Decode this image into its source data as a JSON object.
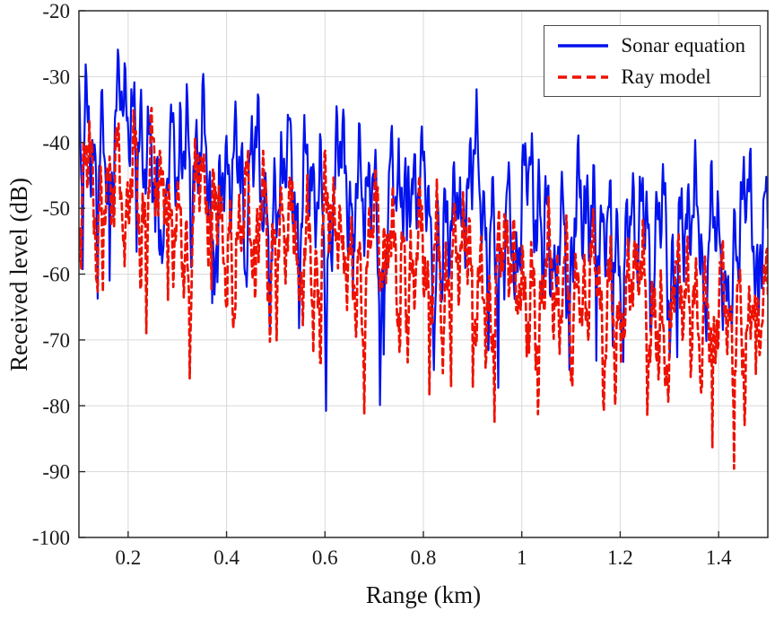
{
  "chart_data": {
    "type": "line",
    "title": "",
    "xlabel": "Range (km)",
    "ylabel": "Received level (dB)",
    "xlim": [
      0.1,
      1.5
    ],
    "ylim": [
      -100,
      -20
    ],
    "xticks": [
      0.2,
      0.4,
      0.6,
      0.8,
      1,
      1.2,
      1.4
    ],
    "yticks": [
      -100,
      -90,
      -80,
      -70,
      -60,
      -50,
      -40,
      -30,
      -20
    ],
    "grid": true,
    "legend_position": "top-right",
    "colors": {
      "grid": "#d9d9d9",
      "axis_box": "#2b2b2b",
      "tick_text": "#1a1a1a",
      "background": "#ffffff"
    },
    "series": [
      {
        "name": "Sonar equation",
        "color": "#0012ee",
        "style": "solid",
        "line_width": 2.2,
        "seed": 7,
        "trend_x": [
          0.1,
          0.2,
          0.3,
          0.4,
          0.5,
          0.6,
          0.8,
          1.0,
          1.2,
          1.5
        ],
        "trend_db": [
          -31,
          -35,
          -38.5,
          -40.5,
          -41.5,
          -42.5,
          -44.5,
          -46.5,
          -48.5,
          -50
        ],
        "osc": [
          {
            "f": 63,
            "a": 5.0
          },
          {
            "f": 151,
            "a": 3.2
          },
          {
            "f": 29,
            "a": 3.8
          },
          {
            "f": 7.3,
            "a": 2.0
          }
        ],
        "fades": [
          {
            "f": 9.1,
            "floor": 0.004,
            "g": 0.55
          },
          {
            "f": 4.3,
            "floor": 0.004,
            "g": 0.5
          }
        ],
        "jitter": 1.6
      },
      {
        "name": "Ray model",
        "color": "#ee1100",
        "style": "dashed",
        "line_width": 2.7,
        "seed": 23,
        "trend_x": [
          0.1,
          0.2,
          0.3,
          0.4,
          0.5,
          0.6,
          0.8,
          1.0,
          1.2,
          1.5
        ],
        "trend_db": [
          -43,
          -41.5,
          -45.5,
          -47.5,
          -49.5,
          -51,
          -53.5,
          -56.5,
          -59,
          -62.5
        ],
        "osc": [
          {
            "f": 57,
            "a": 4.5
          },
          {
            "f": 167,
            "a": 3.0
          },
          {
            "f": 31,
            "a": 3.5
          },
          {
            "f": 8.1,
            "a": 2.0
          }
        ],
        "fades": [
          {
            "f": 11.3,
            "floor": 0.005,
            "g": 0.5
          },
          {
            "f": 5.7,
            "floor": 0.005,
            "g": 0.45
          }
        ],
        "jitter": 1.6
      }
    ]
  },
  "legend": {
    "items": [
      {
        "label": "Sonar equation"
      },
      {
        "label": "Ray model"
      }
    ]
  }
}
